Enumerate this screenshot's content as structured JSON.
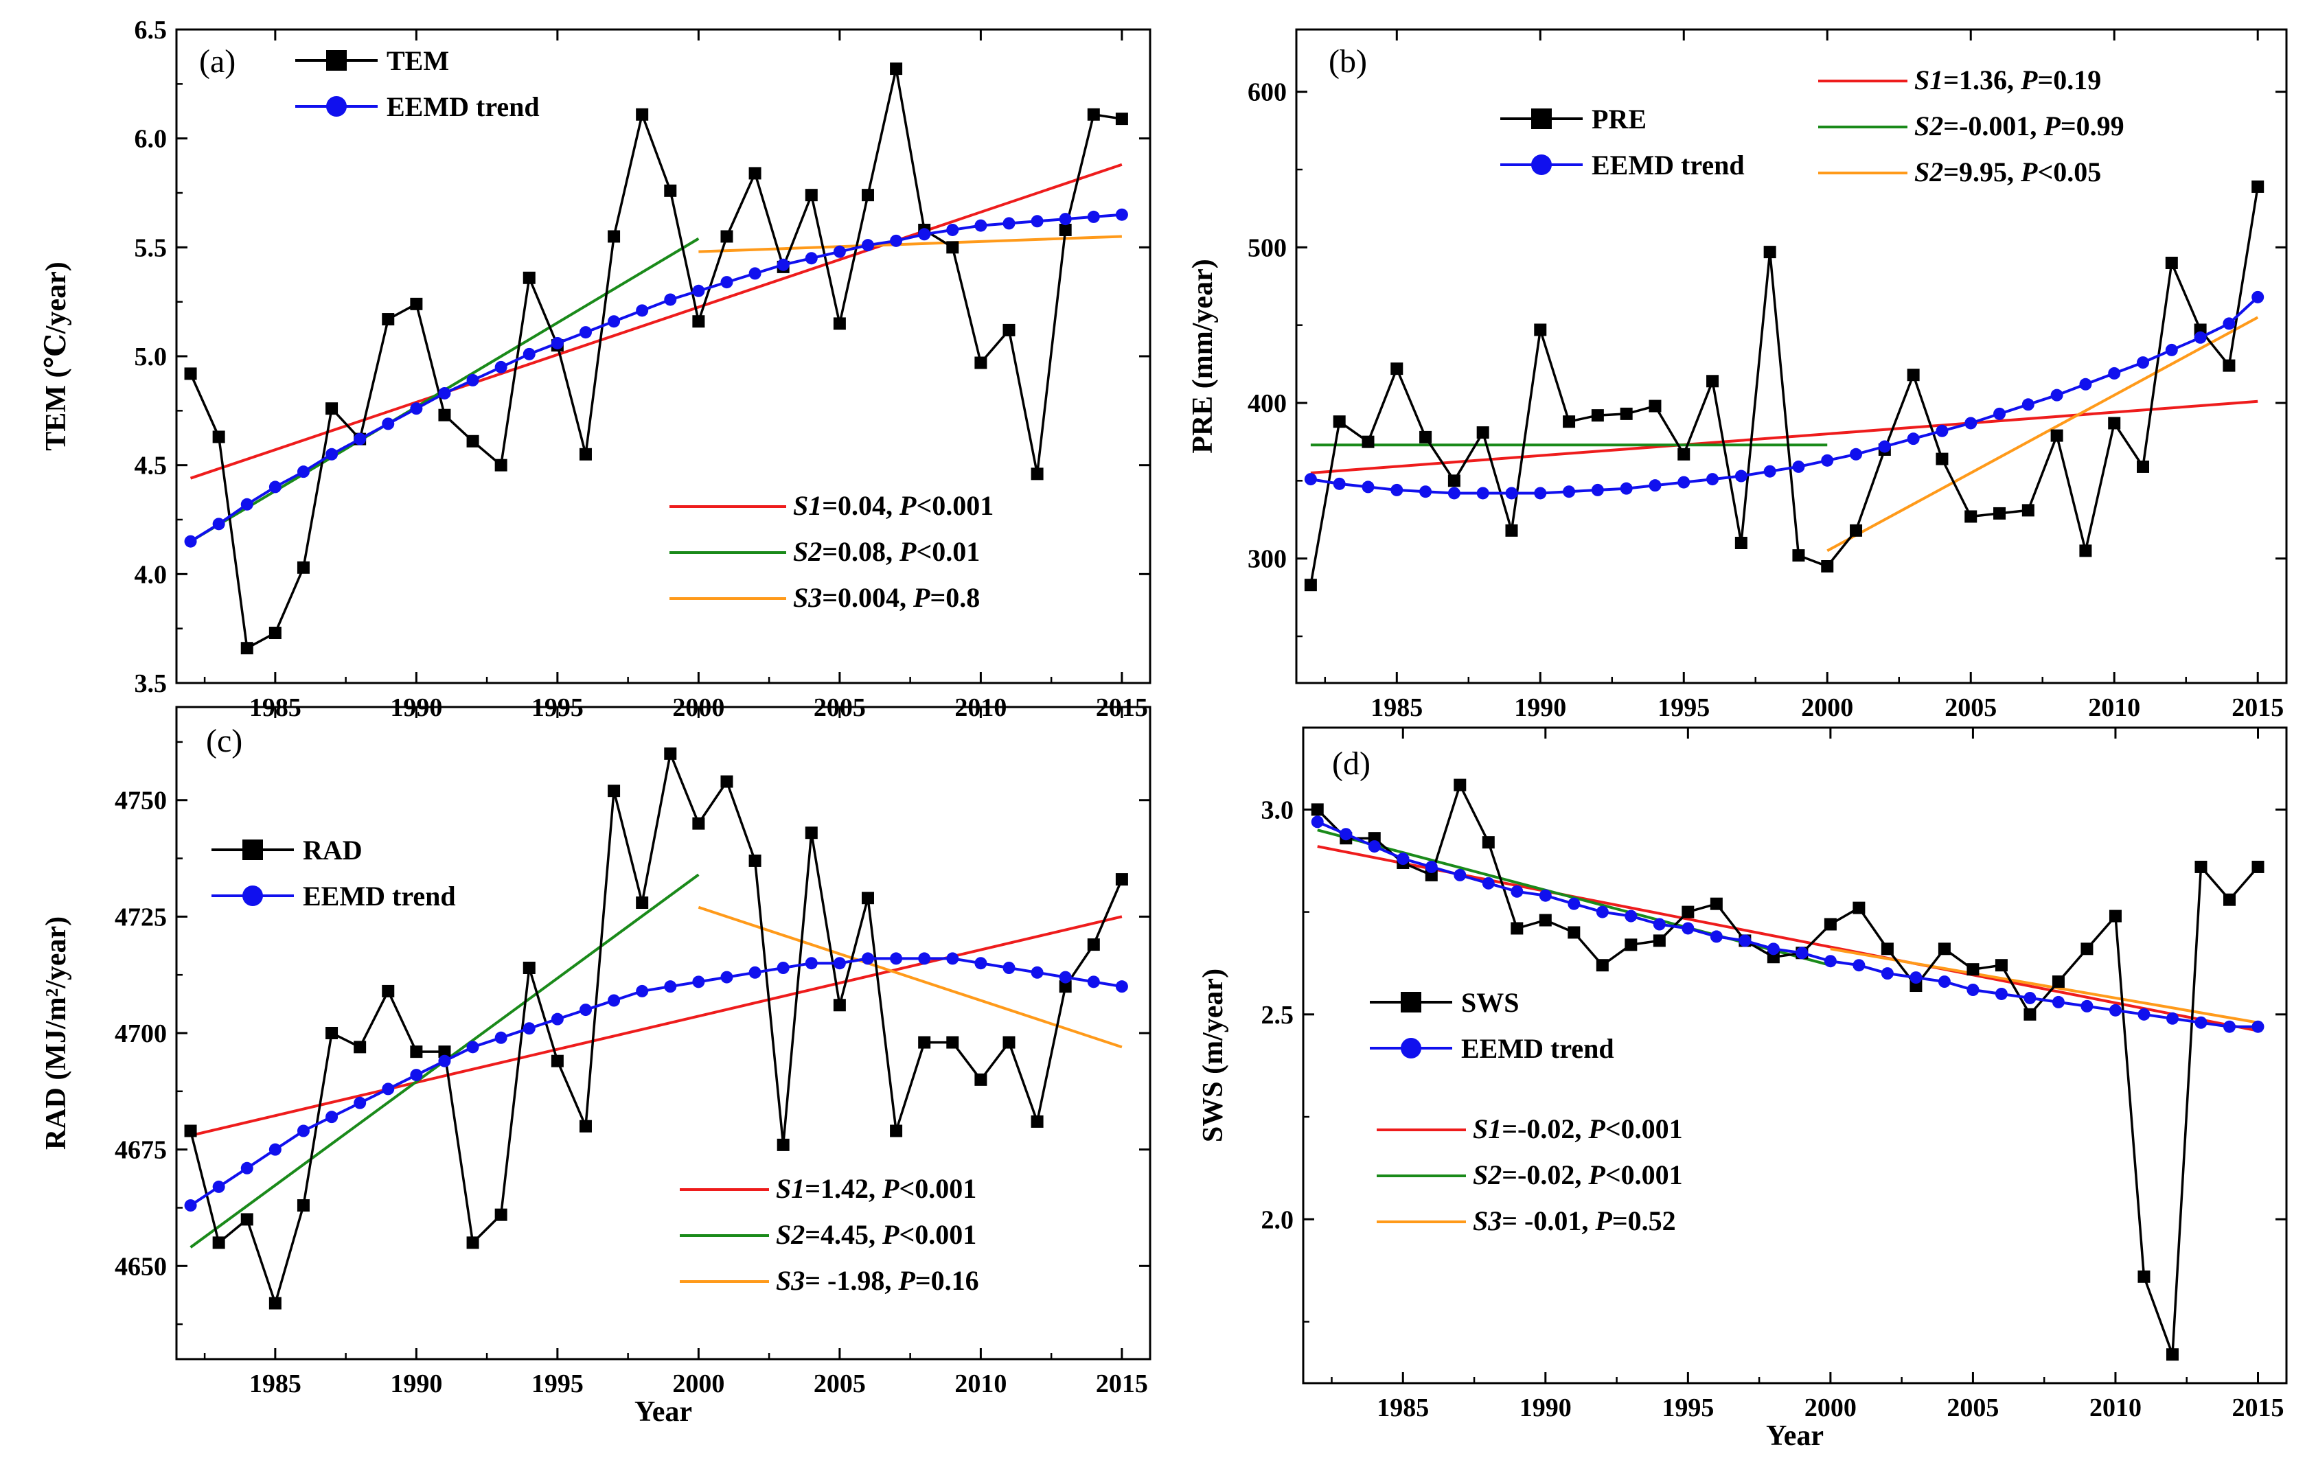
{
  "chart_data": [
    {
      "id": "a",
      "type": "line",
      "panel_label": "(a)",
      "ylabel": "TEM (℃/year)",
      "xlabel": "",
      "xlim": [
        1981.5,
        2016
      ],
      "ylim": [
        3.5,
        6.5
      ],
      "xticks": [
        1985,
        1990,
        1995,
        2000,
        2005,
        2010,
        2015
      ],
      "yticks": [
        3.5,
        4.0,
        4.5,
        5.0,
        5.5,
        6.0,
        6.5
      ],
      "ytick_labels": [
        "3.5",
        "4.0",
        "4.5",
        "5.0",
        "5.5",
        "6.0",
        "6.5"
      ],
      "x": [
        1982,
        1983,
        1984,
        1985,
        1986,
        1987,
        1988,
        1989,
        1990,
        1991,
        1992,
        1993,
        1994,
        1995,
        1996,
        1997,
        1998,
        1999,
        2000,
        2001,
        2002,
        2003,
        2004,
        2005,
        2006,
        2007,
        2008,
        2009,
        2010,
        2011,
        2012,
        2013,
        2014,
        2015
      ],
      "series": [
        {
          "name": "TEM",
          "kind": "observed",
          "color": "#000000",
          "values": [
            4.92,
            4.63,
            3.66,
            3.73,
            4.03,
            4.76,
            4.62,
            5.17,
            5.24,
            4.73,
            4.61,
            4.5,
            5.36,
            5.05,
            4.55,
            5.55,
            6.11,
            5.76,
            5.16,
            5.55,
            5.84,
            5.41,
            5.74,
            5.15,
            5.74,
            6.32,
            5.58,
            5.5,
            4.97,
            5.12,
            4.46,
            5.58,
            6.11,
            6.09
          ]
        },
        {
          "name": "EEMD trend",
          "kind": "trend",
          "color": "#1010ee",
          "values": [
            4.15,
            4.23,
            4.32,
            4.4,
            4.47,
            4.55,
            4.62,
            4.69,
            4.76,
            4.83,
            4.89,
            4.95,
            5.01,
            5.06,
            5.11,
            5.16,
            5.21,
            5.26,
            5.3,
            5.34,
            5.38,
            5.42,
            5.45,
            5.48,
            5.51,
            5.53,
            5.56,
            5.58,
            5.6,
            5.61,
            5.62,
            5.63,
            5.64,
            5.65
          ]
        }
      ],
      "fits": [
        {
          "name": "S1",
          "color": "#ee1c1c",
          "x": [
            1982,
            2015
          ],
          "y": [
            4.44,
            5.88
          ]
        },
        {
          "name": "S2",
          "color": "#1a8a1a",
          "x": [
            1982,
            2000
          ],
          "y": [
            4.15,
            5.54
          ]
        },
        {
          "name": "S3",
          "color": "#ff9a1a",
          "x": [
            2000,
            2015
          ],
          "y": [
            5.48,
            5.55
          ]
        }
      ],
      "legend": [
        {
          "label": "TEM",
          "color": "#000000",
          "marker": "square"
        },
        {
          "label": "EEMD trend",
          "color": "#1010ee",
          "marker": "circle"
        }
      ],
      "stats": [
        {
          "color": "#ee1c1c",
          "s": "S1",
          "sval": "=0.04, ",
          "p": "P",
          "pval": "<0.001"
        },
        {
          "color": "#1a8a1a",
          "s": "S2",
          "sval": "=0.08, ",
          "p": "P",
          "pval": "<0.01"
        },
        {
          "color": "#ff9a1a",
          "s": "S3",
          "sval": "=0.004, ",
          "p": "P",
          "pval": "=0.8"
        }
      ]
    },
    {
      "id": "b",
      "type": "line",
      "panel_label": "(b)",
      "ylabel": "PRE (mm/year)",
      "xlabel": "",
      "xlim": [
        1981.5,
        2016
      ],
      "ylim": [
        220,
        640
      ],
      "xticks": [
        1985,
        1990,
        1995,
        2000,
        2005,
        2010,
        2015
      ],
      "yticks": [
        300,
        400,
        500,
        600
      ],
      "ytick_labels": [
        "300",
        "400",
        "500",
        "600"
      ],
      "x": [
        1982,
        1983,
        1984,
        1985,
        1986,
        1987,
        1988,
        1989,
        1990,
        1991,
        1992,
        1993,
        1994,
        1995,
        1996,
        1997,
        1998,
        1999,
        2000,
        2001,
        2002,
        2003,
        2004,
        2005,
        2006,
        2007,
        2008,
        2009,
        2010,
        2011,
        2012,
        2013,
        2014,
        2015
      ],
      "series": [
        {
          "name": "PRE",
          "kind": "observed",
          "color": "#000000",
          "values": [
            283,
            388,
            375,
            422,
            378,
            350,
            381,
            318,
            447,
            388,
            392,
            393,
            398,
            367,
            414,
            310,
            497,
            302,
            295,
            318,
            370,
            418,
            364,
            327,
            329,
            331,
            379,
            305,
            387,
            359,
            490,
            447,
            424,
            539
          ]
        },
        {
          "name": "EEMD trend",
          "kind": "trend",
          "color": "#1010ee",
          "values": [
            351,
            348,
            346,
            344,
            343,
            342,
            342,
            342,
            342,
            343,
            344,
            345,
            347,
            349,
            351,
            353,
            356,
            359,
            363,
            367,
            372,
            377,
            382,
            387,
            393,
            399,
            405,
            412,
            419,
            426,
            434,
            442,
            451,
            468
          ]
        }
      ],
      "fits": [
        {
          "name": "S1",
          "color": "#ee1c1c",
          "x": [
            1982,
            2015
          ],
          "y": [
            355,
            401
          ]
        },
        {
          "name": "S2",
          "color": "#1a8a1a",
          "x": [
            1982,
            2000
          ],
          "y": [
            373,
            373
          ]
        },
        {
          "name": "S2",
          "color": "#ff9a1a",
          "x": [
            2000,
            2015
          ],
          "y": [
            305,
            455
          ]
        }
      ],
      "legend": [
        {
          "label": "PRE",
          "color": "#000000",
          "marker": "square"
        },
        {
          "label": "EEMD trend",
          "color": "#1010ee",
          "marker": "circle"
        }
      ],
      "stats": [
        {
          "color": "#ee1c1c",
          "s": "S1",
          "sval": "=1.36, ",
          "p": "P",
          "pval": "=0.19"
        },
        {
          "color": "#1a8a1a",
          "s": "S2",
          "sval": "=-0.001, ",
          "p": "P",
          "pval": "=0.99"
        },
        {
          "color": "#ff9a1a",
          "s": "S2",
          "sval": "=9.95, ",
          "p": "P",
          "pval": "<0.05"
        }
      ]
    },
    {
      "id": "c",
      "type": "line",
      "panel_label": "(c)",
      "ylabel": "RAD (MJ/m²/year)",
      "xlabel": "Year",
      "xlim": [
        1981.5,
        2016
      ],
      "ylim": [
        4630,
        4770
      ],
      "xticks": [
        1985,
        1990,
        1995,
        2000,
        2005,
        2010,
        2015
      ],
      "yticks": [
        4650,
        4675,
        4700,
        4725,
        4750
      ],
      "ytick_labels": [
        "4650",
        "4675",
        "4700",
        "4725",
        "4750"
      ],
      "x": [
        1982,
        1983,
        1984,
        1985,
        1986,
        1987,
        1988,
        1989,
        1990,
        1991,
        1992,
        1993,
        1994,
        1995,
        1996,
        1997,
        1998,
        1999,
        2000,
        2001,
        2002,
        2003,
        2004,
        2005,
        2006,
        2007,
        2008,
        2009,
        2010,
        2011,
        2012,
        2013,
        2014,
        2015
      ],
      "series": [
        {
          "name": "RAD",
          "kind": "observed",
          "color": "#000000",
          "values": [
            4679,
            4655,
            4660,
            4642,
            4663,
            4700,
            4697,
            4709,
            4696,
            4696,
            4655,
            4661,
            4714,
            4694,
            4680,
            4752,
            4728,
            4760,
            4745,
            4754,
            4737,
            4676,
            4743,
            4706,
            4729,
            4679,
            4698,
            4698,
            4690,
            4698,
            4681,
            4710,
            4719,
            4733
          ]
        },
        {
          "name": "EEMD trend",
          "kind": "trend",
          "color": "#1010ee",
          "values": [
            4663,
            4667,
            4671,
            4675,
            4679,
            4682,
            4685,
            4688,
            4691,
            4694,
            4697,
            4699,
            4701,
            4703,
            4705,
            4707,
            4709,
            4710,
            4711,
            4712,
            4713,
            4714,
            4715,
            4715,
            4716,
            4716,
            4716,
            4716,
            4715,
            4714,
            4713,
            4712,
            4711,
            4710
          ]
        }
      ],
      "fits": [
        {
          "name": "S1",
          "color": "#ee1c1c",
          "x": [
            1982,
            2015
          ],
          "y": [
            4678,
            4725
          ]
        },
        {
          "name": "S2",
          "color": "#1a8a1a",
          "x": [
            1982,
            2000
          ],
          "y": [
            4654,
            4734
          ]
        },
        {
          "name": "S3",
          "color": "#ff9a1a",
          "x": [
            2000,
            2015
          ],
          "y": [
            4727,
            4697
          ]
        }
      ],
      "legend": [
        {
          "label": "RAD",
          "color": "#000000",
          "marker": "square"
        },
        {
          "label": "EEMD trend",
          "color": "#1010ee",
          "marker": "circle"
        }
      ],
      "stats": [
        {
          "color": "#ee1c1c",
          "s": "S1",
          "sval": "=1.42, ",
          "p": "P",
          "pval": "<0.001"
        },
        {
          "color": "#1a8a1a",
          "s": "S2",
          "sval": "=4.45, ",
          "p": "P",
          "pval": "<0.001"
        },
        {
          "color": "#ff9a1a",
          "s": "S3",
          "sval": "= -1.98, ",
          "p": "P",
          "pval": "=0.16"
        }
      ]
    },
    {
      "id": "d",
      "type": "line",
      "panel_label": "(d)",
      "ylabel": "SWS (m/year)",
      "xlabel": "Year",
      "xlim": [
        1981.5,
        2016
      ],
      "ylim": [
        1.6,
        3.2
      ],
      "xticks": [
        1985,
        1990,
        1995,
        2000,
        2005,
        2010,
        2015
      ],
      "yticks": [
        2.0,
        2.5,
        3.0
      ],
      "ytick_labels": [
        "2.0",
        "2.5",
        "3.0"
      ],
      "x": [
        1982,
        1983,
        1984,
        1985,
        1986,
        1987,
        1988,
        1989,
        1990,
        1991,
        1992,
        1993,
        1994,
        1995,
        1996,
        1997,
        1998,
        1999,
        2000,
        2001,
        2002,
        2003,
        2004,
        2005,
        2006,
        2007,
        2008,
        2009,
        2010,
        2011,
        2012,
        2013,
        2014,
        2015
      ],
      "series": [
        {
          "name": "SWS",
          "kind": "observed",
          "color": "#000000",
          "values": [
            3.0,
            2.93,
            2.93,
            2.87,
            2.84,
            3.06,
            2.92,
            2.71,
            2.73,
            2.7,
            2.62,
            2.67,
            2.68,
            2.75,
            2.77,
            2.68,
            2.64,
            2.65,
            2.72,
            2.76,
            2.66,
            2.57,
            2.66,
            2.61,
            2.62,
            2.5,
            2.58,
            2.66,
            2.74,
            1.86,
            1.67,
            2.86,
            2.78,
            2.86
          ]
        },
        {
          "name": "EEMD trend",
          "kind": "trend",
          "color": "#1010ee",
          "values": [
            2.97,
            2.94,
            2.91,
            2.88,
            2.86,
            2.84,
            2.82,
            2.8,
            2.79,
            2.77,
            2.75,
            2.74,
            2.72,
            2.71,
            2.69,
            2.68,
            2.66,
            2.65,
            2.63,
            2.62,
            2.6,
            2.59,
            2.58,
            2.56,
            2.55,
            2.54,
            2.53,
            2.52,
            2.51,
            2.5,
            2.49,
            2.48,
            2.47,
            2.47
          ]
        }
      ],
      "fits": [
        {
          "name": "S1",
          "color": "#ee1c1c",
          "x": [
            1982,
            2015
          ],
          "y": [
            2.91,
            2.46
          ]
        },
        {
          "name": "S2",
          "color": "#1a8a1a",
          "x": [
            1982,
            2000
          ],
          "y": [
            2.95,
            2.62
          ]
        },
        {
          "name": "S3",
          "color": "#ff9a1a",
          "x": [
            2000,
            2015
          ],
          "y": [
            2.66,
            2.48
          ]
        }
      ],
      "legend": [
        {
          "label": "SWS",
          "color": "#000000",
          "marker": "square"
        },
        {
          "label": "EEMD trend",
          "color": "#1010ee",
          "marker": "circle"
        }
      ],
      "stats": [
        {
          "color": "#ee1c1c",
          "s": "S1",
          "sval": "=-0.02, ",
          "p": "P",
          "pval": "<0.001"
        },
        {
          "color": "#1a8a1a",
          "s": "S2",
          "sval": "=-0.02, ",
          "p": "P",
          "pval": "<0.001"
        },
        {
          "color": "#ff9a1a",
          "s": "S3",
          "sval": "= -0.01, ",
          "p": "P",
          "pval": "=0.52"
        }
      ]
    }
  ]
}
